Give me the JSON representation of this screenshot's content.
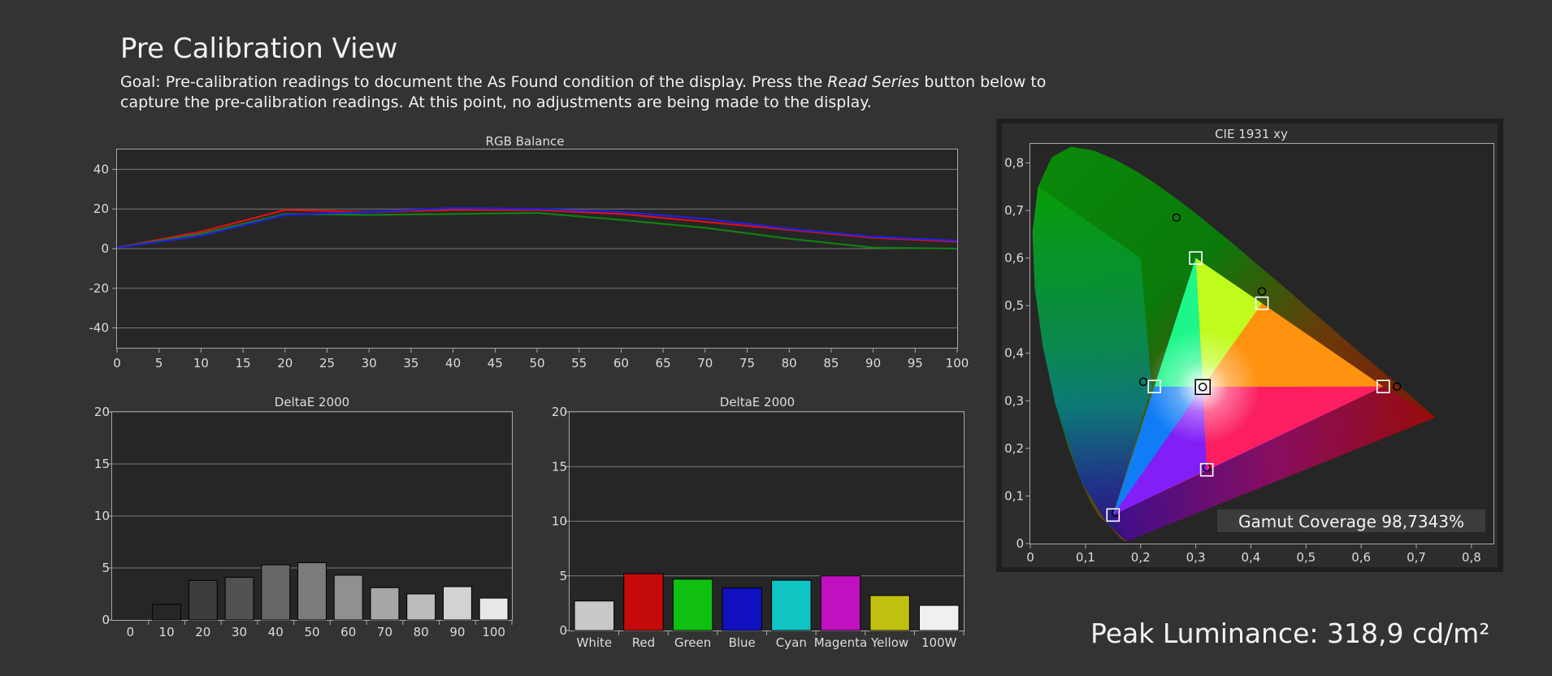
{
  "header": {
    "title": "Pre Calibration View",
    "goal_prefix": "Goal: Pre-calibration readings to document the As Found condition of the display. Press the ",
    "goal_italic": "Read Series",
    "goal_suffix": " button below to capture the pre-calibration readings. At this point, no adjustments are being made to the display."
  },
  "peak_luminance": "Peak Luminance: 318,9 cd/m²",
  "chart_data": [
    {
      "type": "line",
      "title": "RGB Balance",
      "x": [
        0,
        10,
        20,
        30,
        40,
        50,
        60,
        70,
        80,
        90,
        100
      ],
      "xticks": [
        0,
        5,
        10,
        15,
        20,
        25,
        30,
        35,
        40,
        45,
        50,
        55,
        60,
        65,
        70,
        75,
        80,
        85,
        90,
        95,
        100
      ],
      "yticks": [
        40,
        20,
        0,
        -20,
        -40
      ],
      "ylim": [
        -50,
        50
      ],
      "xlim": [
        0,
        100
      ],
      "grid": true,
      "series": [
        {
          "color": "#e01010",
          "values": [
            0.5,
            8.5,
            19.5,
            18.5,
            19.5,
            19.5,
            17.5,
            13.5,
            9.5,
            5.5,
            3.5
          ]
        },
        {
          "color": "#108010",
          "values": [
            0.5,
            7.5,
            17.5,
            17.0,
            17.5,
            18.0,
            14.5,
            10.5,
            5.0,
            0.5,
            0.0
          ]
        },
        {
          "color": "#2020e0",
          "values": [
            0.5,
            6.5,
            17.0,
            18.5,
            20.5,
            20.0,
            18.5,
            15.0,
            10.0,
            6.0,
            4.0
          ]
        }
      ]
    },
    {
      "type": "bar",
      "title": "DeltaE 2000",
      "categories": [
        "0",
        "10",
        "20",
        "30",
        "40",
        "50",
        "60",
        "70",
        "80",
        "90",
        "100"
      ],
      "values": [
        0,
        1.5,
        3.8,
        4.1,
        5.3,
        5.5,
        4.3,
        3.1,
        2.5,
        3.2,
        2.1
      ],
      "colors": [
        "#111111",
        "#262626",
        "#3c3c3c",
        "#515151",
        "#666666",
        "#7b7b7b",
        "#909090",
        "#a6a6a6",
        "#bcbcbc",
        "#d2d2d2",
        "#e8e8e8"
      ],
      "yticks": [
        0,
        5,
        10,
        15,
        20
      ],
      "ylim": [
        0,
        20
      ],
      "grid": true
    },
    {
      "type": "bar",
      "title": "DeltaE 2000",
      "categories": [
        "White",
        "Red",
        "Green",
        "Blue",
        "Cyan",
        "Magenta",
        "Yellow",
        "100W"
      ],
      "values": [
        2.7,
        5.2,
        4.7,
        3.9,
        4.6,
        5.0,
        3.2,
        2.3
      ],
      "colors": [
        "#c8c8c8",
        "#c40a0a",
        "#10c010",
        "#1010c0",
        "#10c4c4",
        "#c010c0",
        "#c0c010",
        "#f0f0f0"
      ],
      "yticks": [
        0,
        5,
        10,
        15,
        20
      ],
      "ylim": [
        0,
        20
      ],
      "grid": true
    },
    {
      "type": "scatter",
      "title": "CIE 1931 xy",
      "xticks": [
        "0",
        "0,1",
        "0,2",
        "0,3",
        "0,4",
        "0,5",
        "0,6",
        "0,7",
        "0,8"
      ],
      "yticks": [
        "0",
        "0,1",
        "0,2",
        "0,3",
        "0,4",
        "0,5",
        "0,6",
        "0,7",
        "0,8"
      ],
      "xlim": [
        0,
        0.84
      ],
      "ylim": [
        0,
        0.84
      ],
      "target_triangle": [
        [
          0.64,
          0.33
        ],
        [
          0.3,
          0.6
        ],
        [
          0.15,
          0.06
        ]
      ],
      "targets": [
        [
          0.64,
          0.33
        ],
        [
          0.3,
          0.6
        ],
        [
          0.15,
          0.06
        ],
        [
          0.225,
          0.33
        ],
        [
          0.42,
          0.505
        ],
        [
          0.32,
          0.155
        ],
        [
          0.3127,
          0.329
        ]
      ],
      "measured": [
        [
          0.665,
          0.33
        ],
        [
          0.265,
          0.685
        ],
        [
          0.155,
          0.065
        ],
        [
          0.205,
          0.34
        ],
        [
          0.42,
          0.53
        ],
        [
          0.32,
          0.16
        ],
        [
          0.3127,
          0.329
        ]
      ],
      "gamut_coverage": "Gamut Coverage 98,7343%"
    }
  ]
}
